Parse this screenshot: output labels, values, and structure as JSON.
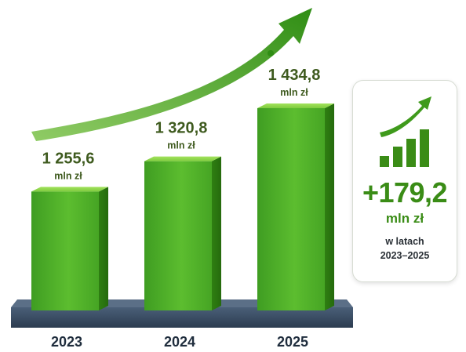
{
  "chart_data": {
    "type": "bar",
    "categories": [
      "2023",
      "2024",
      "2025"
    ],
    "values": [
      1255.6,
      1320.8,
      1434.8
    ],
    "value_labels": [
      "1 255,6",
      "1 320,8",
      "1 434,8"
    ],
    "unit": "mln zł",
    "trend_arrow": "up",
    "colors": {
      "bar": "#4caf2a",
      "bar_dark": "#2f7f12",
      "bar_light": "#8ed64a",
      "base": "#3b4f66",
      "arrow": "#3f9a1c",
      "label": "#3e5a1e"
    }
  },
  "summary_card": {
    "total": "+179,2",
    "unit": "mln zł",
    "note_line1": "w latach",
    "note_line2": "2023–2025",
    "icon": "growth-bars-arrow-icon"
  }
}
